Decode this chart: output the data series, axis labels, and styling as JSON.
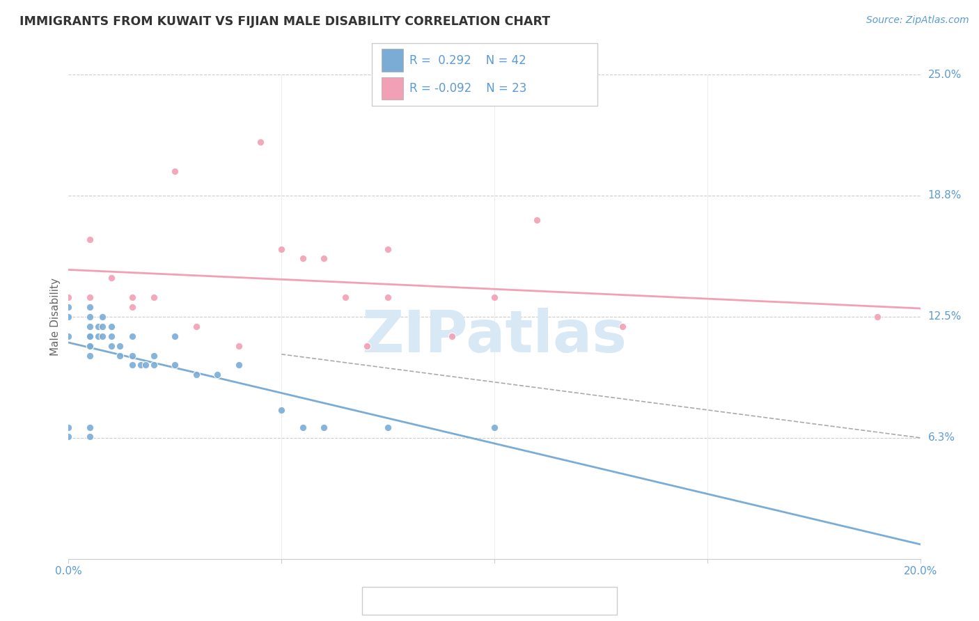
{
  "title": "IMMIGRANTS FROM KUWAIT VS FIJIAN MALE DISABILITY CORRELATION CHART",
  "source_text": "Source: ZipAtlas.com",
  "ylabel": "Male Disability",
  "xlim": [
    0.0,
    0.2
  ],
  "ylim": [
    0.0,
    0.25
  ],
  "grid_color": "#cccccc",
  "background_color": "#ffffff",
  "blue_color": "#7aacd6",
  "pink_color": "#f2a0b5",
  "legend_R_blue": "0.292",
  "legend_N_blue": "42",
  "legend_R_pink": "-0.092",
  "legend_N_pink": "23",
  "blue_points_x": [
    0.0,
    0.0,
    0.0,
    0.005,
    0.005,
    0.005,
    0.005,
    0.005,
    0.005,
    0.005,
    0.005,
    0.007,
    0.007,
    0.008,
    0.008,
    0.008,
    0.01,
    0.01,
    0.01,
    0.012,
    0.012,
    0.015,
    0.015,
    0.015,
    0.017,
    0.018,
    0.02,
    0.02,
    0.025,
    0.025,
    0.03,
    0.035,
    0.04,
    0.05,
    0.055,
    0.06,
    0.075,
    0.1,
    0.0,
    0.0,
    0.005,
    0.005
  ],
  "blue_points_y": [
    0.115,
    0.125,
    0.13,
    0.105,
    0.11,
    0.115,
    0.12,
    0.125,
    0.13,
    0.115,
    0.11,
    0.115,
    0.12,
    0.115,
    0.12,
    0.125,
    0.11,
    0.115,
    0.12,
    0.105,
    0.11,
    0.1,
    0.105,
    0.115,
    0.1,
    0.1,
    0.1,
    0.105,
    0.1,
    0.115,
    0.095,
    0.095,
    0.1,
    0.077,
    0.068,
    0.068,
    0.068,
    0.068,
    0.068,
    0.063,
    0.063,
    0.068
  ],
  "pink_points_x": [
    0.0,
    0.005,
    0.01,
    0.015,
    0.015,
    0.02,
    0.03,
    0.04,
    0.05,
    0.055,
    0.065,
    0.07,
    0.075,
    0.09,
    0.1,
    0.11,
    0.13,
    0.19,
    0.005,
    0.025,
    0.045,
    0.06,
    0.075
  ],
  "pink_points_y": [
    0.135,
    0.135,
    0.145,
    0.135,
    0.13,
    0.135,
    0.12,
    0.11,
    0.16,
    0.155,
    0.135,
    0.11,
    0.135,
    0.115,
    0.135,
    0.175,
    0.12,
    0.125,
    0.165,
    0.2,
    0.215,
    0.155,
    0.16
  ],
  "title_color": "#333333",
  "axis_color": "#5b9bd5",
  "watermark_color": "#d8e8f5",
  "watermark_text": "ZIPatlas"
}
